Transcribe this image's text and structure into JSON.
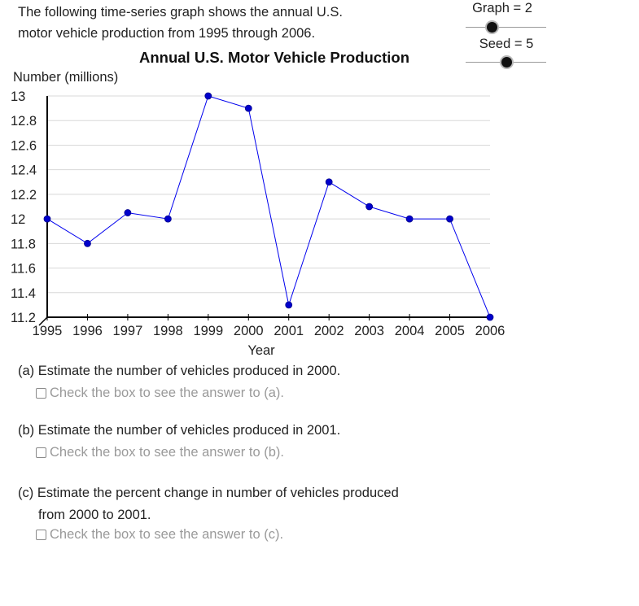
{
  "intro": {
    "line1": "The following time-series graph shows the annual U.S.",
    "line2": "motor vehicle production from 1995 through 2006."
  },
  "sliders": {
    "graph_label": "Graph = 2",
    "graph_value": 2,
    "seed_label": "Seed = 5",
    "seed_value": 5
  },
  "questions": {
    "a_text": "(a) Estimate the number of vehicles produced in 2000.",
    "a_check": "Check the box to see the answer to (a).",
    "b_text": "(b) Estimate the number of vehicles produced in 2001.",
    "b_check": "Check the box to see the answer to (b).",
    "c_text_line1": "(c) Estimate the percent change in number of vehicles produced",
    "c_text_line2": "from 2000 to 2001.",
    "c_check": "Check the box to see the answer to (c)."
  },
  "chart_data": {
    "type": "line",
    "title": "Annual U.S. Motor Vehicle Production",
    "xlabel": "Year",
    "ylabel": "Number (millions)",
    "x": [
      1995,
      1996,
      1997,
      1998,
      1999,
      2000,
      2001,
      2002,
      2003,
      2004,
      2005,
      2006
    ],
    "values": [
      12.0,
      11.8,
      12.05,
      12.0,
      13.0,
      12.9,
      11.3,
      12.3,
      12.1,
      12.0,
      12.0,
      11.2
    ],
    "xlim": [
      1995,
      2006
    ],
    "ylim": [
      11.2,
      13.0
    ],
    "y_ticks": [
      "11.2",
      "11.4",
      "11.6",
      "11.8",
      "12",
      "12.2",
      "12.4",
      "12.6",
      "12.8",
      "13"
    ],
    "grid": true,
    "colors": {
      "line": "#0000ee",
      "marker": "#0000cc",
      "grid": "#d8d8d8"
    }
  }
}
